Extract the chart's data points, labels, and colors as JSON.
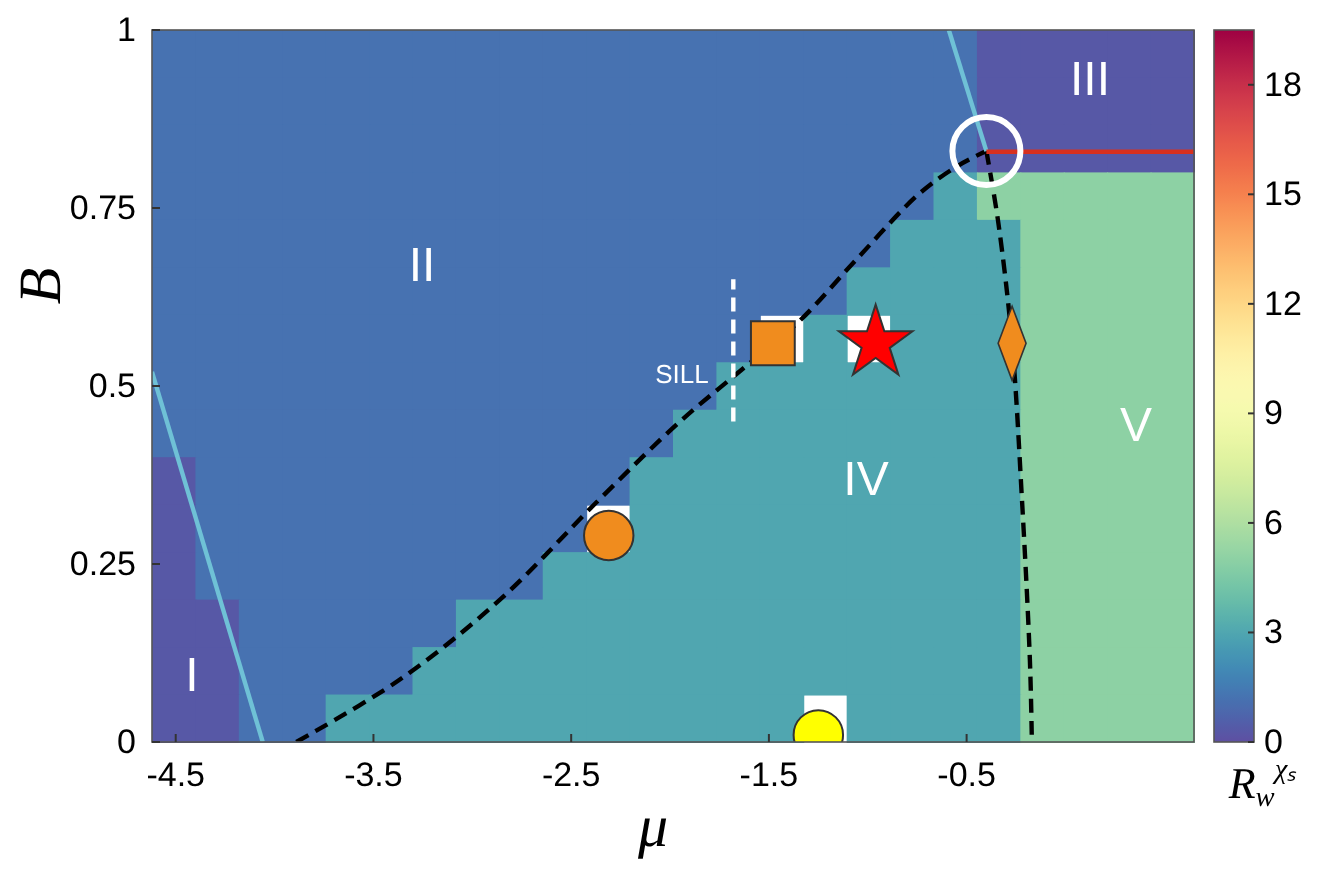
{
  "chart_data": [
    {
      "type": "heatmap",
      "clabel": "R$_{w}$$^{χₛ}$",
      "categories": [
        null,
        null,
        null,
        null,
        null,
        null,
        null,
        null,
        null,
        null,
        null,
        null,
        null,
        null,
        null,
        null,
        null,
        null,
        null,
        null,
        null,
        null,
        null,
        null
      ],
      "y_categories": [
        null,
        null,
        null,
        null,
        null,
        null,
        null,
        null,
        null,
        null,
        null,
        null,
        null,
        null,
        null
      ],
      "cells": [
        [
          1.2,
          1.2,
          1.2,
          1.2,
          1.2,
          1.2,
          1.2,
          1.2,
          1.2,
          1.2,
          1.2,
          1.2,
          1.2,
          1.2,
          1.2,
          1.2,
          1.2,
          1.2,
          1.2,
          0.3,
          0.3,
          0.3,
          0.3,
          0.3
        ],
        [
          1.2,
          1.2,
          1.2,
          1.2,
          1.2,
          1.2,
          1.2,
          1.2,
          1.2,
          1.2,
          1.2,
          1.2,
          1.2,
          1.2,
          1.2,
          1.2,
          1.2,
          1.2,
          1.2,
          0.3,
          0.3,
          0.3,
          0.3,
          0.3
        ],
        [
          1.2,
          1.2,
          1.2,
          1.2,
          1.2,
          1.2,
          1.2,
          1.2,
          1.2,
          1.2,
          1.2,
          1.2,
          1.2,
          1.2,
          1.2,
          1.2,
          1.2,
          1.2,
          1.2,
          0.3,
          0.3,
          0.3,
          0.3,
          0.3
        ],
        [
          1.2,
          1.2,
          1.2,
          1.2,
          1.2,
          1.2,
          1.2,
          1.2,
          1.2,
          1.2,
          1.2,
          1.2,
          1.2,
          1.2,
          1.2,
          1.2,
          1.2,
          1.2,
          3,
          5,
          5,
          5,
          5,
          5
        ],
        [
          1.2,
          1.2,
          1.2,
          1.2,
          1.2,
          1.2,
          1.2,
          1.2,
          1.2,
          1.2,
          1.2,
          1.2,
          1.2,
          1.2,
          1.2,
          1.2,
          1.2,
          3,
          3,
          3,
          5,
          5,
          5,
          5
        ],
        [
          1.2,
          1.2,
          1.2,
          1.2,
          1.2,
          1.2,
          1.2,
          1.2,
          1.2,
          1.2,
          1.2,
          1.2,
          1.2,
          1.2,
          1.2,
          1.2,
          3,
          3,
          3,
          3,
          5,
          5,
          5,
          5
        ],
        [
          1.2,
          1.2,
          1.2,
          1.2,
          1.2,
          1.2,
          1.2,
          1.2,
          1.2,
          1.2,
          1.2,
          1.2,
          1.2,
          1.2,
          null,
          3,
          null,
          3,
          3,
          3,
          5,
          5,
          5,
          5
        ],
        [
          1.2,
          1.2,
          1.2,
          1.2,
          1.2,
          1.2,
          1.2,
          1.2,
          1.2,
          1.2,
          1.2,
          1.2,
          1.2,
          3,
          3,
          3,
          3,
          3,
          3,
          3,
          5,
          5,
          5,
          5
        ],
        [
          1.2,
          1.2,
          1.2,
          1.2,
          1.2,
          1.2,
          1.2,
          1.2,
          1.2,
          1.2,
          1.2,
          1.2,
          3,
          3,
          3,
          3,
          3,
          3,
          3,
          3,
          5,
          5,
          5,
          5
        ],
        [
          0.3,
          1.2,
          1.2,
          1.2,
          1.2,
          1.2,
          1.2,
          1.2,
          1.2,
          1.2,
          1.2,
          3,
          3,
          3,
          3,
          3,
          3,
          3,
          3,
          3,
          5,
          5,
          5,
          5
        ],
        [
          0.3,
          1.2,
          1.2,
          1.2,
          1.2,
          1.2,
          1.2,
          1.2,
          1.2,
          1.2,
          null,
          3,
          3,
          3,
          3,
          3,
          3,
          3,
          3,
          3,
          5,
          5,
          5,
          5
        ],
        [
          0.3,
          1.2,
          1.2,
          1.2,
          1.2,
          1.2,
          1.2,
          1.2,
          1.2,
          3,
          3,
          3,
          3,
          3,
          3,
          3,
          3,
          3,
          3,
          3,
          5,
          5,
          5,
          5
        ],
        [
          0.3,
          0.3,
          1.2,
          1.2,
          1.2,
          1.2,
          1.2,
          3,
          3,
          3,
          3,
          3,
          3,
          3,
          3,
          3,
          3,
          3,
          3,
          3,
          5,
          5,
          5,
          5
        ],
        [
          0.3,
          0.3,
          1.2,
          1.2,
          1.2,
          1.2,
          3,
          3,
          3,
          3,
          3,
          3,
          3,
          3,
          3,
          3,
          3,
          3,
          3,
          3,
          5,
          5,
          5,
          5
        ],
        [
          0.3,
          0.3,
          1.2,
          1.2,
          3,
          3,
          3,
          3,
          3,
          3,
          3,
          3,
          3,
          3,
          3,
          null,
          3,
          3,
          3,
          3,
          5,
          5,
          5,
          5
        ]
      ],
      "clim": [
        0,
        19.5
      ],
      "cticks": [
        0,
        3,
        6,
        9,
        12,
        15,
        18
      ]
    },
    {
      "type": "line",
      "xlabel": "μ",
      "ylabel": "B",
      "xlim": [
        -4.62,
        0.65
      ],
      "xticks": [
        -4.5,
        -3.5,
        -2.5,
        -1.5,
        -0.5
      ],
      "ylim": [
        0,
        1
      ],
      "yticks": [
        0,
        0.25,
        0.5,
        0.75,
        1
      ],
      "series": [
        {
          "type": "line",
          "color": "#000000",
          "line_style": "dashed",
          "x": [
            -3.89,
            -3.37,
            -2.86,
            -2.36,
            -1.95,
            -1.65,
            -1.35,
            -1.05,
            -0.74,
            -0.54,
            -0.4
          ],
          "values": [
            0,
            0.087,
            0.2,
            0.34,
            0.45,
            0.52,
            0.59,
            0.68,
            0.77,
            0.81,
            0.83
          ]
        },
        {
          "type": "line",
          "color": "#000000",
          "line_style": "dashed",
          "x": [
            -0.4,
            -0.34,
            -0.27,
            -0.22,
            -0.18,
            -0.17
          ],
          "values": [
            0.83,
            0.73,
            0.56,
            0.34,
            0.115,
            0
          ]
        },
        {
          "type": "line",
          "color": "#6fc1d6",
          "line_style": "solid",
          "x": [
            -4.62,
            -4.06
          ],
          "values": [
            0.52,
            0
          ]
        },
        {
          "type": "line",
          "color": "#6fc1d6",
          "line_style": "solid",
          "x": [
            -0.59,
            -0.4
          ],
          "values": [
            1,
            0.83
          ]
        },
        {
          "type": "line",
          "color": "#d7301f",
          "line_style": "solid",
          "x": [
            -0.4,
            0.65
          ],
          "values": [
            0.829,
            0.829
          ]
        },
        {
          "type": "line",
          "color": "#ffffff",
          "line_style": "dashed",
          "x": [
            -1.68,
            -1.68
          ],
          "values": [
            0.45,
            0.65
          ]
        },
        {
          "type": "scatter",
          "color": "#f08c1e",
          "marker": "circle",
          "x": [
            -2.31
          ],
          "values": [
            0.29
          ]
        },
        {
          "type": "scatter",
          "color": "#f08c1e",
          "marker": "square",
          "x": [
            -1.48
          ],
          "values": [
            0.56
          ]
        },
        {
          "type": "scatter",
          "color": "#ff0000",
          "marker": "star",
          "x": [
            -0.96
          ],
          "values": [
            0.56
          ]
        },
        {
          "type": "scatter",
          "color": "#f08c1e",
          "marker": "diamond",
          "x": [
            -0.27
          ],
          "values": [
            0.56
          ]
        },
        {
          "type": "scatter",
          "color": "#ffff00",
          "marker": "circle",
          "x": [
            -1.25
          ],
          "values": [
            0.01
          ]
        }
      ],
      "annotations": [
        "I",
        "II",
        "III",
        "IV",
        "V",
        "SILL"
      ]
    }
  ]
}
